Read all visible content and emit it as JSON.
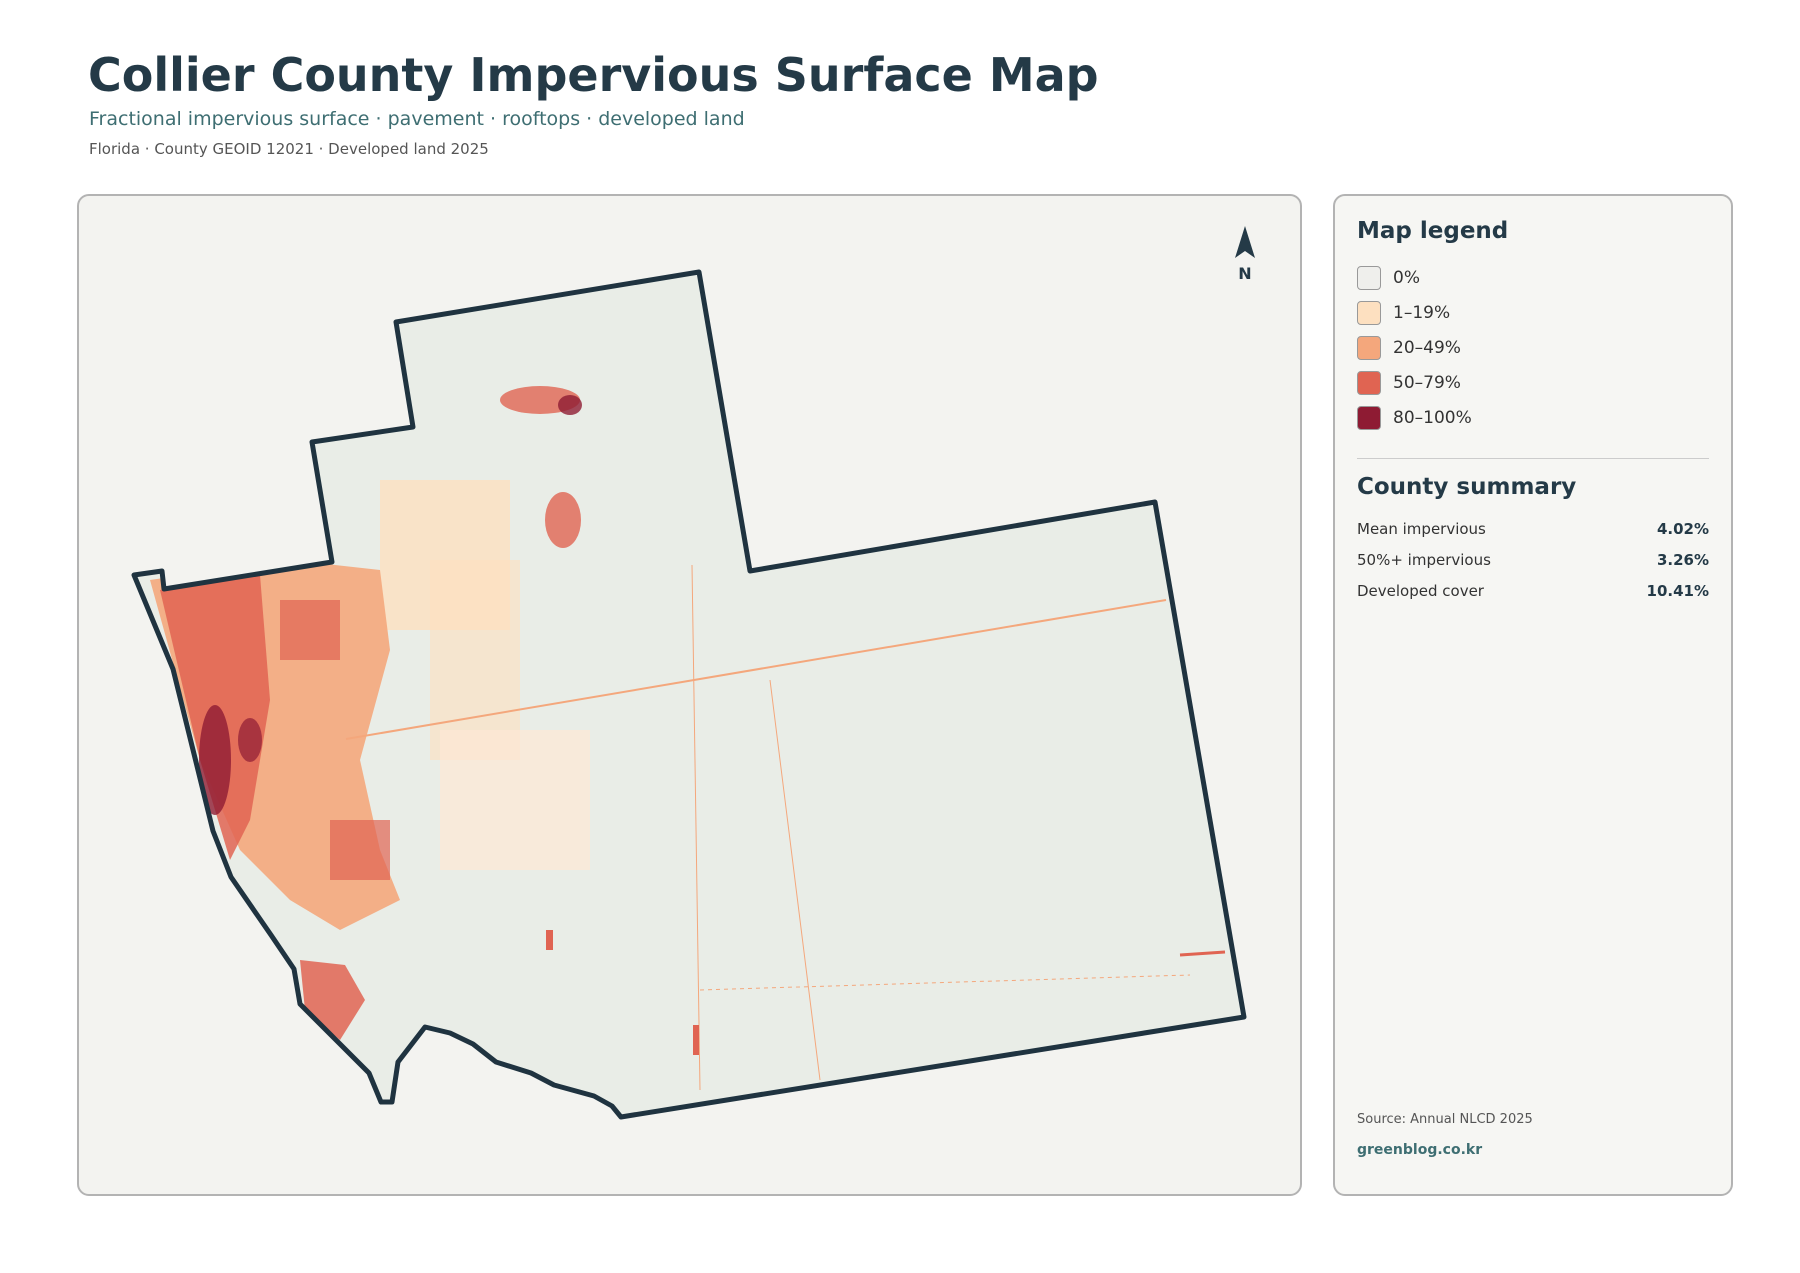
{
  "header": {
    "title": "Collier County Impervious Surface Map",
    "subtitle": "Fractional impervious surface · pavement · rooftops · developed land",
    "meta": "Florida · County GEOID 12021 · Developed land 2025"
  },
  "map": {
    "north_label": "N"
  },
  "legend": {
    "title": "Map legend",
    "items": [
      {
        "label": "0%",
        "color": "#efefec"
      },
      {
        "label": "1–19%",
        "color": "#fde0c0"
      },
      {
        "label": "20–49%",
        "color": "#f4a77c"
      },
      {
        "label": "50–79%",
        "color": "#e06452"
      },
      {
        "label": "80–100%",
        "color": "#8e1b33"
      }
    ]
  },
  "summary": {
    "title": "County summary",
    "rows": [
      {
        "label": "Mean impervious",
        "value": "4.02%"
      },
      {
        "label": "50%+ impervious",
        "value": "3.26%"
      },
      {
        "label": "Developed cover",
        "value": "10.41%"
      }
    ]
  },
  "footer": {
    "source": "Source: Annual NLCD 2025",
    "site": "greenblog.co.kr"
  }
}
